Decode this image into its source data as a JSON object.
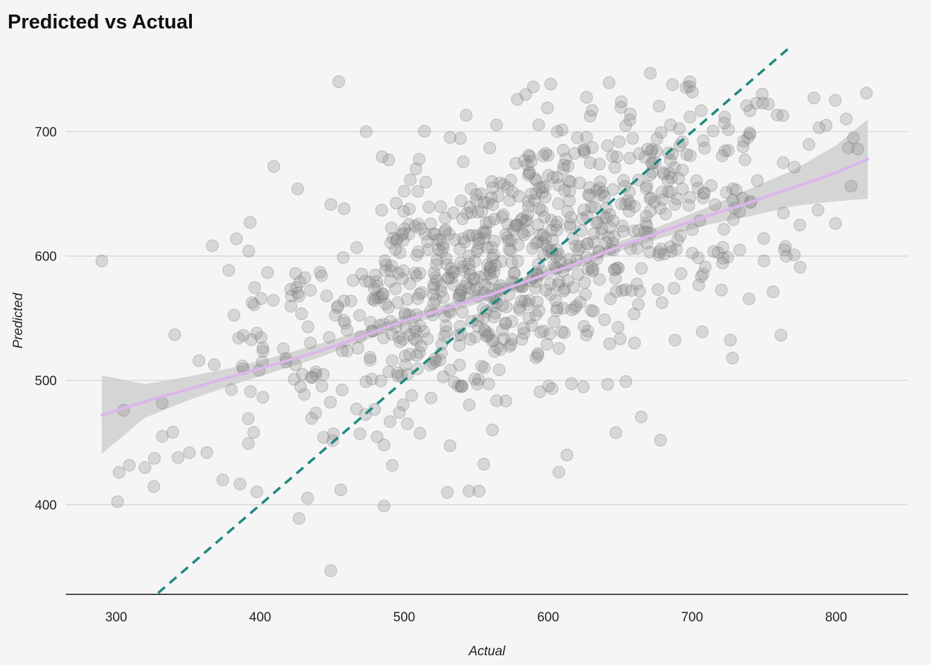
{
  "chart_data": {
    "type": "scatter",
    "title": "Predicted vs Actual",
    "xlabel": "Actual",
    "ylabel": "Predicted",
    "xlim": [
      265,
      850
    ],
    "ylim": [
      328,
      768
    ],
    "xticks": [
      300,
      400,
      500,
      600,
      700,
      800
    ],
    "yticks": [
      400,
      500,
      600,
      700
    ],
    "grid": "horizontal",
    "reference_line": {
      "name": "y = x",
      "style": "dashed",
      "color": "#1f8a80",
      "from": [
        265,
        265
      ],
      "to": [
        850,
        850
      ]
    },
    "smooth": {
      "method": "loess",
      "color": "#dcb5ea",
      "band_color": "#cfcfcf",
      "x": [
        290,
        320,
        350,
        380,
        410,
        440,
        470,
        500,
        530,
        560,
        590,
        620,
        650,
        680,
        710,
        740,
        770,
        800,
        822
      ],
      "y": [
        472,
        483,
        493,
        503,
        513,
        523,
        535,
        548,
        558,
        569,
        582,
        594,
        608,
        620,
        632,
        643,
        655,
        667,
        678
      ],
      "lower": [
        441,
        470,
        484,
        496,
        507,
        518,
        531,
        544,
        554,
        565,
        578,
        590,
        604,
        615,
        625,
        632,
        640,
        644,
        646
      ],
      "upper": [
        504,
        497,
        503,
        510,
        519,
        529,
        540,
        552,
        562,
        573,
        586,
        598,
        612,
        625,
        639,
        654,
        669,
        689,
        710
      ]
    },
    "points_series": {
      "name": "observations",
      "color": "#888888",
      "seed": 20240,
      "n": 900,
      "x_mean": 580,
      "x_sd": 98,
      "intercept": 360,
      "slope": 0.41,
      "resid_sd": 53
    },
    "highlight_points": [
      [
        290,
        596
      ],
      [
        302,
        426
      ],
      [
        320,
        430
      ],
      [
        332,
        455
      ],
      [
        343,
        438
      ],
      [
        363,
        442
      ],
      [
        374,
        420
      ],
      [
        385,
        534
      ],
      [
        392,
        604
      ],
      [
        393,
        627
      ],
      [
        449,
        347
      ],
      [
        456,
        412
      ],
      [
        486,
        399
      ],
      [
        486,
        448
      ],
      [
        530,
        410
      ],
      [
        545,
        411
      ],
      [
        552,
        411
      ],
      [
        613,
        440
      ],
      [
        647,
        458
      ],
      [
        671,
        747
      ],
      [
        678,
        452
      ],
      [
        728,
        518
      ],
      [
        749,
        723
      ],
      [
        763,
        713
      ],
      [
        764,
        605
      ],
      [
        775,
        591
      ],
      [
        812,
        695
      ],
      [
        815,
        686
      ],
      [
        821,
        731
      ],
      [
        426,
        654
      ],
      [
        427,
        389
      ]
    ]
  }
}
